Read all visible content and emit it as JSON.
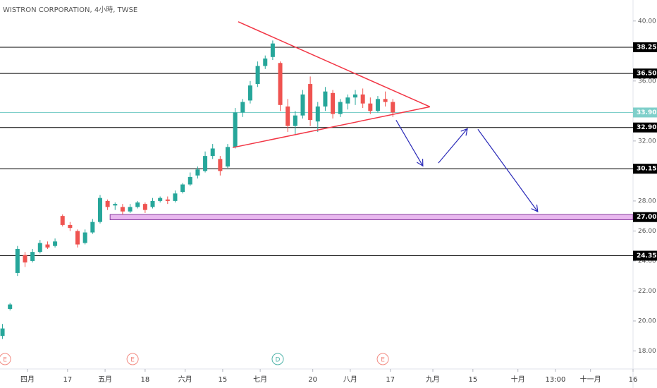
{
  "chart_data": {
    "type": "candlestick",
    "title": "WISTRON CORPORATION, 4小時, TWSE",
    "up_color": "#26a69a",
    "down_color": "#ef5350",
    "xlim": [
      -11,
      242
    ],
    "ylim": [
      16.8,
      41.4
    ],
    "xticks": [
      {
        "value": 0,
        "label": "四月"
      },
      {
        "value": 16,
        "label": "17"
      },
      {
        "value": 31,
        "label": "五月"
      },
      {
        "value": 47,
        "label": "18"
      },
      {
        "value": 63,
        "label": "六月"
      },
      {
        "value": 78,
        "label": "15"
      },
      {
        "value": 93,
        "label": "七月"
      },
      {
        "value": 114,
        "label": "20"
      },
      {
        "value": 129,
        "label": "八月"
      },
      {
        "value": 145,
        "label": "17"
      },
      {
        "value": 162,
        "label": "九月"
      },
      {
        "value": 178,
        "label": "15"
      },
      {
        "value": 196,
        "label": "十月"
      },
      {
        "value": 211,
        "label": "13:00"
      },
      {
        "value": 225,
        "label": "十一月"
      },
      {
        "value": 242,
        "label": "16"
      }
    ],
    "yticks": [
      {
        "value": 18,
        "label": "18.00"
      },
      {
        "value": 20,
        "label": "20.00"
      },
      {
        "value": 22,
        "label": "22.00"
      },
      {
        "value": 24,
        "label": "24.00"
      },
      {
        "value": 26,
        "label": "26.00"
      },
      {
        "value": 28,
        "label": "28.00"
      },
      {
        "value": 32,
        "label": "32.00"
      },
      {
        "value": 36,
        "label": "36.00"
      },
      {
        "value": 40,
        "label": "40.00"
      }
    ],
    "x": [
      -10,
      -7,
      -4,
      -1,
      2,
      5,
      8,
      11,
      14,
      17,
      20,
      23,
      26,
      29,
      32,
      35,
      38,
      41,
      44,
      47,
      50,
      53,
      56,
      59,
      62,
      65,
      68,
      71,
      74,
      77,
      80,
      83,
      86,
      89,
      92,
      95,
      98,
      101,
      104,
      107,
      110,
      113,
      116,
      119,
      122,
      125,
      128,
      131,
      134,
      137,
      140,
      143,
      146
    ],
    "open": [
      19.0,
      20.8,
      23.2,
      24.4,
      24.0,
      24.6,
      25.1,
      25.0,
      27.0,
      26.4,
      26.0,
      25.2,
      25.9,
      26.6,
      28.0,
      27.7,
      27.6,
      27.3,
      27.6,
      27.8,
      27.6,
      28.0,
      28.1,
      28.0,
      28.6,
      29.1,
      29.7,
      30.0,
      31.0,
      30.8,
      30.3,
      31.6,
      33.9,
      34.7,
      35.8,
      37.0,
      37.6,
      37.2,
      34.3,
      33.0,
      33.7,
      35.8,
      33.3,
      34.3,
      35.2,
      33.8,
      34.5,
      34.9,
      35.1,
      34.5,
      34.0,
      34.8,
      34.6
    ],
    "high": [
      19.8,
      21.2,
      25.0,
      24.6,
      24.8,
      25.4,
      25.3,
      25.5,
      27.1,
      26.6,
      26.1,
      26.1,
      26.8,
      28.4,
      28.1,
      27.9,
      27.8,
      27.8,
      28.0,
      27.9,
      28.2,
      28.3,
      28.3,
      28.7,
      29.2,
      29.9,
      30.3,
      31.3,
      31.8,
      31.0,
      31.8,
      34.2,
      34.8,
      36.0,
      37.3,
      37.7,
      38.7,
      37.3,
      34.8,
      34.0,
      35.4,
      36.3,
      34.6,
      35.6,
      35.4,
      34.8,
      35.1,
      35.4,
      35.5,
      34.9,
      35.0,
      35.3,
      34.8
    ],
    "low": [
      18.8,
      20.7,
      23.0,
      23.6,
      23.9,
      24.5,
      24.8,
      24.9,
      26.3,
      26.0,
      24.9,
      25.1,
      25.8,
      26.5,
      27.4,
      27.4,
      27.1,
      27.2,
      27.5,
      27.2,
      27.5,
      27.9,
      27.8,
      27.9,
      28.5,
      29.0,
      29.5,
      29.9,
      30.8,
      29.7,
      30.2,
      31.5,
      33.6,
      34.5,
      35.6,
      36.8,
      37.4,
      34.0,
      32.6,
      32.4,
      33.5,
      33.0,
      32.6,
      34.0,
      33.5,
      33.6,
      34.1,
      34.4,
      34.2,
      33.8,
      33.9,
      34.3,
      33.6
    ],
    "close": [
      19.5,
      21.1,
      24.8,
      23.9,
      24.6,
      25.2,
      24.9,
      25.3,
      26.4,
      26.2,
      25.1,
      25.9,
      26.6,
      28.2,
      27.6,
      27.8,
      27.3,
      27.6,
      27.9,
      27.4,
      28.0,
      28.2,
      28.0,
      28.5,
      29.1,
      29.6,
      30.1,
      31.0,
      31.5,
      30.0,
      31.6,
      33.9,
      34.6,
      35.7,
      37.0,
      37.5,
      38.5,
      34.4,
      33.0,
      33.7,
      35.1,
      33.4,
      34.3,
      35.3,
      33.8,
      34.6,
      34.9,
      35.1,
      34.5,
      34.0,
      34.8,
      34.6,
      33.9
    ],
    "levels": [
      {
        "value": 38.25,
        "label": "38.25",
        "color": "#000000"
      },
      {
        "value": 36.5,
        "label": "36.50",
        "color": "#000000"
      },
      {
        "value": 33.9,
        "label": "33.90",
        "color": "#7fcfca"
      },
      {
        "value": 32.9,
        "label": "32.90",
        "color": "#000000"
      },
      {
        "value": 30.15,
        "label": "30.15",
        "color": "#000000"
      },
      {
        "value": 24.35,
        "label": "24.35",
        "color": "#000000"
      }
    ],
    "zone": {
      "x": 33,
      "low": 26.75,
      "high": 27.1,
      "label": "27.00",
      "color": "#e9b8ef"
    },
    "triangle": {
      "color": "#f23645",
      "points": [
        [
          84.2,
          39.95
        ],
        [
          160.8,
          34.28
        ],
        [
          82,
          31.56
        ]
      ]
    },
    "arrows": {
      "color": "#2a2ab8",
      "paths": [
        [
          [
            147.3,
            33.39
          ],
          [
            158,
            30.34
          ]
        ],
        [
          [
            164.2,
            30.53
          ],
          [
            175.8,
            32.82
          ]
        ],
        [
          [
            180,
            32.78
          ],
          [
            203.9,
            27.29
          ]
        ]
      ]
    },
    "events": [
      {
        "x": -9,
        "label": "E",
        "color": "#f28b82"
      },
      {
        "x": 42,
        "label": "E",
        "color": "#f28b82"
      },
      {
        "x": 100,
        "label": "D",
        "color": "#4fb3a9"
      },
      {
        "x": 142,
        "label": "E",
        "color": "#f28b82"
      }
    ]
  }
}
